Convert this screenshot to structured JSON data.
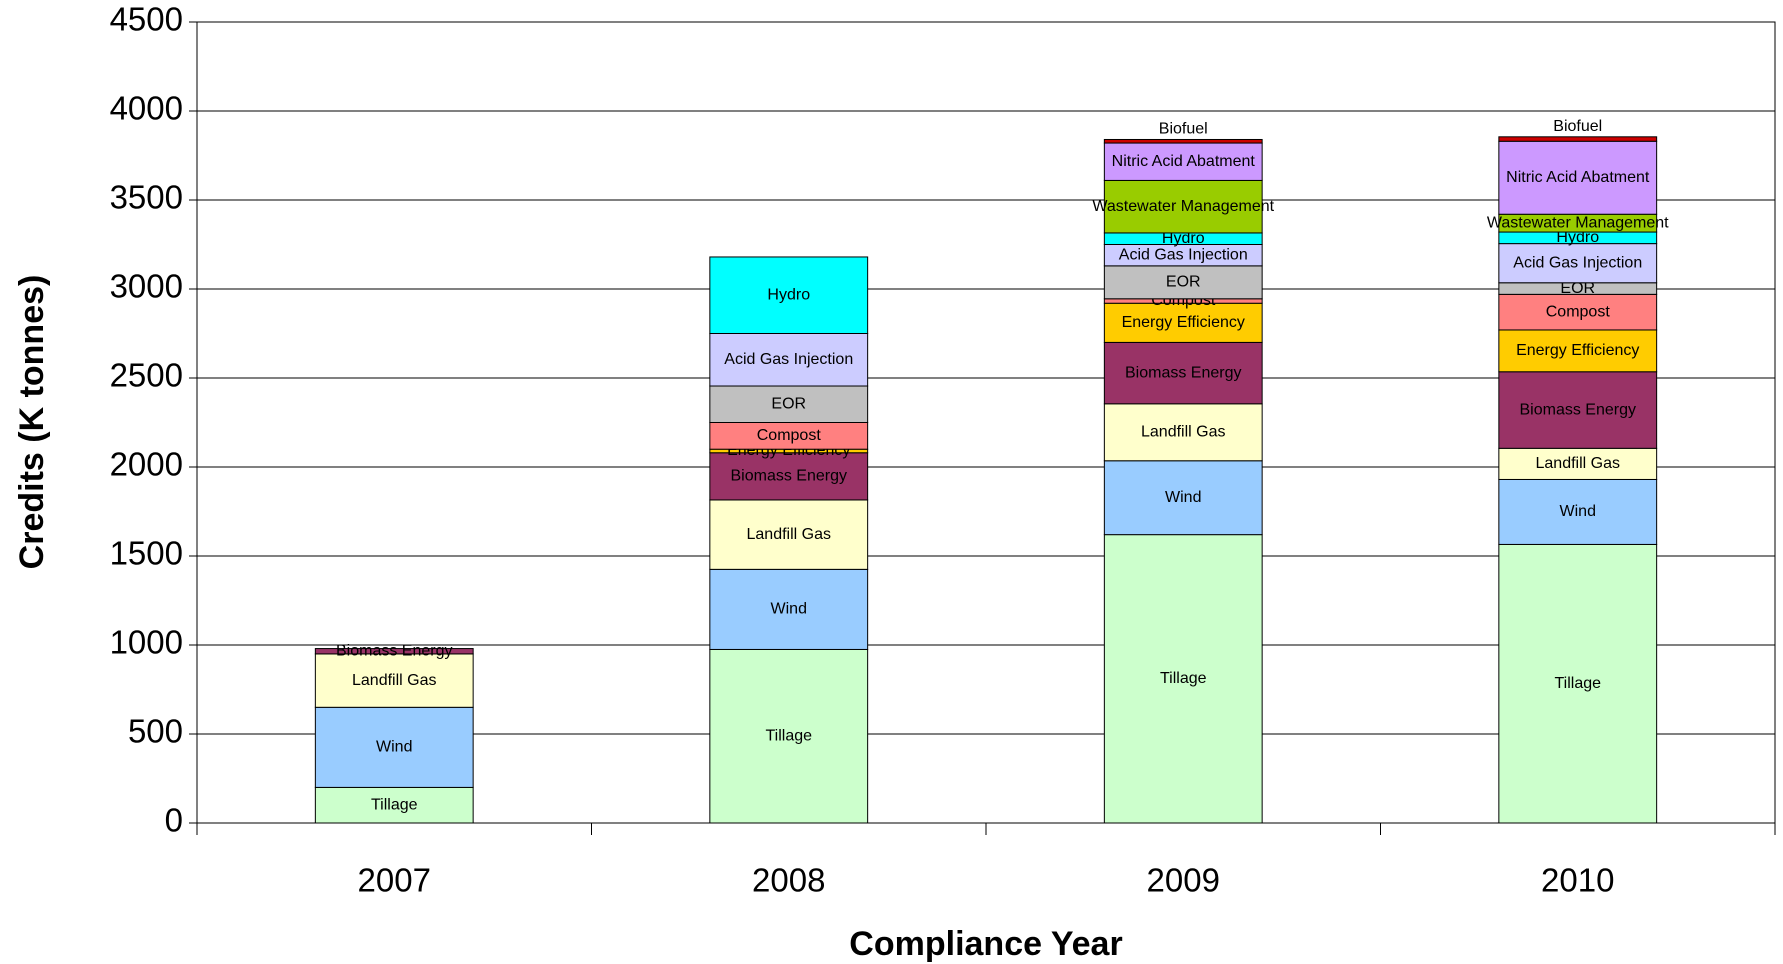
{
  "chart_data": {
    "type": "stacked_bar",
    "categories": [
      "2007",
      "2008",
      "2009",
      "2010"
    ],
    "series": [
      {
        "name": "Tillage",
        "color": "#ccffcc",
        "values": [
          200,
          975,
          1620,
          1565
        ]
      },
      {
        "name": "Wind",
        "color": "#99ccff",
        "values": [
          450,
          450,
          415,
          365
        ]
      },
      {
        "name": "Landfill Gas",
        "color": "#ffffcc",
        "values": [
          300,
          390,
          320,
          175
        ]
      },
      {
        "name": "Biomass Energy",
        "color": "#993366",
        "values": [
          30,
          265,
          345,
          430
        ]
      },
      {
        "name": "Energy Efficiency",
        "color": "#ffcc00",
        "values": [
          0,
          20,
          220,
          235
        ]
      },
      {
        "name": "Compost",
        "color": "#ff8080",
        "values": [
          0,
          150,
          25,
          200
        ]
      },
      {
        "name": "EOR",
        "color": "#c0c0c0",
        "values": [
          0,
          205,
          185,
          65
        ]
      },
      {
        "name": "Acid Gas Injection",
        "color": "#ccccff",
        "values": [
          0,
          295,
          120,
          220
        ]
      },
      {
        "name": "Hydro",
        "color": "#00ffff",
        "values": [
          0,
          430,
          65,
          65
        ]
      },
      {
        "name": "Wastewater Management",
        "color": "#99cc00",
        "values": [
          0,
          0,
          295,
          100
        ]
      },
      {
        "name": "Nitric Acid Abatment",
        "color": "#cc99ff",
        "values": [
          0,
          0,
          210,
          410
        ]
      },
      {
        "name": "Biofuel",
        "color": "#cc0000",
        "values": [
          0,
          0,
          20,
          25
        ]
      }
    ],
    "xlabel": "Compliance Year",
    "ylabel": "Credits (K tonnes)",
    "ylim": [
      0,
      4500
    ],
    "yticks": [
      0,
      500,
      1000,
      1500,
      2000,
      2500,
      3000,
      3500,
      4000,
      4500
    ],
    "grid": true
  }
}
